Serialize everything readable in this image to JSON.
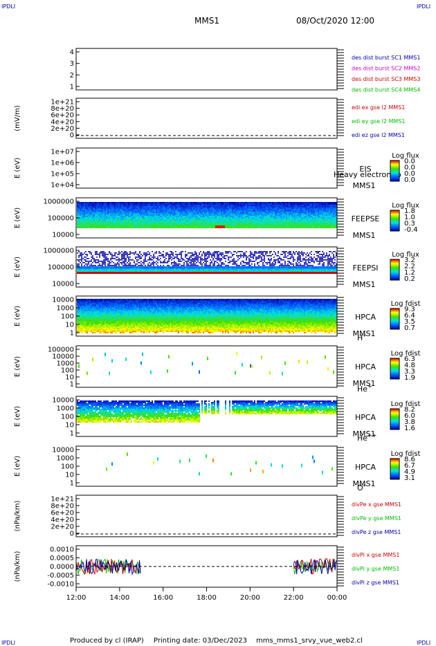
{
  "corner": {
    "tl": "IPDLI",
    "tr": "IPDLI",
    "bl": "IPDLI",
    "br": "IPDLI"
  },
  "header": {
    "mission": "MMS1",
    "datetime": "08/Oct/2020 12:00"
  },
  "footer": {
    "produced": "Produced by cl (IRAP)",
    "printed": "Printing date: 03/Dec/2023",
    "file": "mms_mms1_srvy_vue_web2.cl"
  },
  "colors": {
    "mms1": "#0000aa",
    "mms2": "#cc00cc",
    "mms3": "#cc0000",
    "mms4": "#00bb00",
    "x": "#cc0000",
    "y": "#00bb00",
    "z": "#0000aa"
  },
  "chart_data": {
    "type": "heatmap",
    "x_ticks": [
      "12:00",
      "14:00",
      "16:00",
      "18:00",
      "20:00",
      "22:00",
      "00:00"
    ],
    "panels": [
      {
        "id": "des",
        "ylabel": "",
        "yticks": [
          "4",
          "3",
          "2",
          "1"
        ],
        "legend": [
          {
            "text": "des dist burst SC1 MMS1",
            "color": "#0000aa"
          },
          {
            "text": "des dist burst SC2 MMS2",
            "color": "#cc00cc"
          },
          {
            "text": "des dist burst SC3 MMS3",
            "color": "#cc0000"
          },
          {
            "text": "des dist burst SC4 MMS4",
            "color": "#00bb00"
          }
        ]
      },
      {
        "id": "edi",
        "ylabel": "(mV/m)",
        "yticks": [
          "1e+21",
          "8e+20",
          "6e+20",
          "4e+20",
          "2e+20",
          "0"
        ],
        "legend": [
          {
            "text": "edi ex gse l2 MMS1",
            "color": "#cc0000"
          },
          {
            "text": "edi ey gse l2 MMS1",
            "color": "#00bb00"
          },
          {
            "text": "edi ez gse l2 MMS1",
            "color": "#0000aa"
          }
        ]
      },
      {
        "id": "eis",
        "ylabel": "E (eV)",
        "yticks": [
          "1e+07",
          "1e+06",
          "1e+05",
          "1e+04"
        ],
        "instrument": [
          "EIS",
          "MMS1"
        ],
        "overlay": "Heavy electron to",
        "cbar": {
          "title": "Log flux",
          "ticks": [
            "0.0",
            "0.0",
            "0.0",
            "0.0"
          ]
        }
      },
      {
        "id": "feepse",
        "ylabel": "E (eV)",
        "yticks": [
          "1000000",
          "100000",
          "10000"
        ],
        "instrument": [
          "FEEPSE",
          "MMS1"
        ],
        "cbar": {
          "title": "Log flux",
          "ticks": [
            "1.8",
            "1.0",
            "0.3",
            "-0.4"
          ]
        }
      },
      {
        "id": "feepsi",
        "ylabel": "E (eV)",
        "yticks": [
          "1000000",
          "100000",
          "10000"
        ],
        "instrument": [
          "FEEPSI",
          "MMS1"
        ],
        "cbar": {
          "title": "Log flux",
          "ticks": [
            "3.2",
            "2.2",
            "1.2",
            "0.2"
          ]
        }
      },
      {
        "id": "hpcah",
        "ylabel": "E (eV)",
        "yticks": [
          "10000",
          "1000",
          "100",
          "10",
          "1"
        ],
        "instrument": [
          "HPCA",
          "MMS1"
        ],
        "species": "H",
        "charge": "+",
        "cbar": {
          "title": "Log fdist",
          "ticks": [
            "9.3",
            "6.4",
            "3.5",
            "0.7"
          ]
        }
      },
      {
        "id": "hpcahe",
        "ylabel": "E (eV)",
        "yticks": [
          "100000",
          "10000",
          "1000",
          "100",
          "10",
          "1"
        ],
        "instrument": [
          "HPCA",
          "MMS1"
        ],
        "species": "He",
        "charge": "+",
        "cbar": {
          "title": "Log fdist",
          "ticks": [
            "6.3",
            "4.8",
            "3.3",
            "1.9"
          ]
        }
      },
      {
        "id": "hpcahepp",
        "ylabel": "E (eV)",
        "yticks": [
          "10000",
          "1000",
          "100",
          "10",
          "1"
        ],
        "instrument": [
          "HPCA",
          "MMS1"
        ],
        "species": "He",
        "charge": "++",
        "cbar": {
          "title": "Log fdist",
          "ticks": [
            "8.2",
            "6.0",
            "3.8",
            "1.6"
          ]
        }
      },
      {
        "id": "hpcao",
        "ylabel": "E (eV)",
        "yticks": [
          "10000",
          "1000",
          "100",
          "10",
          "1"
        ],
        "instrument": [
          "HPCA",
          "MMS1"
        ],
        "species": "O",
        "charge": "+",
        "cbar": {
          "title": "Log fdist",
          "ticks": [
            "8.6",
            "6.7",
            "4.9",
            "3.1"
          ]
        }
      },
      {
        "id": "divpe",
        "ylabel": "(nPa/km)",
        "yticks": [
          "1e+21",
          "8e+20",
          "6e+20",
          "4e+20",
          "2e+20",
          "0"
        ],
        "legend": [
          {
            "text": "divPe x gse MMS1",
            "color": "#cc0000"
          },
          {
            "text": "divPe y gse MMS1",
            "color": "#00bb00"
          },
          {
            "text": "divPe z gse MMS1",
            "color": "#0000aa"
          }
        ]
      },
      {
        "id": "divpi",
        "ylabel": "(nPa/km)",
        "yticks": [
          "0.0010",
          "0.0005",
          "0.0000",
          "-0.0005",
          "-0.0010"
        ],
        "ylim": [
          -0.0012,
          0.0012
        ],
        "legend": [
          {
            "text": "divPi x gse MMS1",
            "color": "#cc0000"
          },
          {
            "text": "divPi y gse MMS1",
            "color": "#00bb00"
          },
          {
            "text": "divPi z gse MMS1",
            "color": "#0000aa"
          }
        ],
        "data_intervals": [
          [
            "12:00",
            "15:00"
          ],
          [
            "22:00",
            "00:00"
          ]
        ]
      }
    ]
  }
}
